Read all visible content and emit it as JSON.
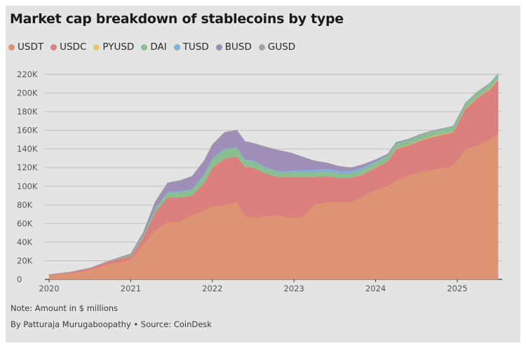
{
  "chart_data": {
    "type": "area",
    "stacked": true,
    "title": "Market cap breakdown of stablecoins by type",
    "x_tick_labels": [
      "2020",
      "2021",
      "2022",
      "2023",
      "2024",
      "2025"
    ],
    "y_tick_labels": [
      "0",
      "20K",
      "40K",
      "60K",
      "80K",
      "100K",
      "120K",
      "140K",
      "160K",
      "180K",
      "200K",
      "220K"
    ],
    "ylim": [
      0,
      220000
    ],
    "xlim": [
      2020.0,
      2025.55
    ],
    "grid": true,
    "legend_position": "top",
    "x": [
      2020.0,
      2020.25,
      2020.5,
      2020.75,
      2021.0,
      2021.15,
      2021.3,
      2021.45,
      2021.6,
      2021.75,
      2021.9,
      2022.0,
      2022.15,
      2022.3,
      2022.4,
      2022.5,
      2022.65,
      2022.8,
      2022.95,
      2023.1,
      2023.25,
      2023.4,
      2023.55,
      2023.7,
      2023.85,
      2024.0,
      2024.15,
      2024.25,
      2024.4,
      2024.55,
      2024.7,
      2024.85,
      2024.95,
      2025.1,
      2025.25,
      2025.4,
      2025.5
    ],
    "series": [
      {
        "name": "USDT",
        "color": "#dc9474",
        "values": [
          4600,
          6500,
          10000,
          17000,
          21000,
          37000,
          53000,
          62000,
          62000,
          69000,
          74000,
          78000,
          80000,
          83000,
          68000,
          66000,
          68000,
          69000,
          66000,
          67000,
          80000,
          83000,
          83000,
          83000,
          89000,
          96000,
          100000,
          106000,
          112000,
          115000,
          118000,
          120000,
          122000,
          140000,
          144000,
          150000,
          156000
        ]
      },
      {
        "name": "USDC",
        "color": "#dc7f7f",
        "values": [
          450,
          1000,
          2000,
          3000,
          4000,
          8000,
          19000,
          26000,
          26000,
          21000,
          30000,
          42000,
          50000,
          49000,
          53000,
          54000,
          46000,
          41000,
          44000,
          43000,
          30000,
          28000,
          26000,
          26000,
          24000,
          24000,
          27000,
          34000,
          32000,
          34000,
          35000,
          36000,
          36000,
          43000,
          51000,
          54000,
          58000
        ]
      },
      {
        "name": "PYUSD",
        "color": "#e3c66c",
        "values": [
          0,
          0,
          0,
          0,
          0,
          0,
          0,
          0,
          0,
          0,
          0,
          0,
          0,
          0,
          0,
          0,
          0,
          0,
          0,
          0,
          0,
          0,
          100,
          200,
          300,
          400,
          400,
          500,
          500,
          800,
          1000,
          700,
          700,
          600,
          700,
          900,
          1000
        ]
      },
      {
        "name": "DAI",
        "color": "#8bbf91",
        "values": [
          100,
          150,
          200,
          400,
          1500,
          2500,
          4000,
          5000,
          5500,
          6000,
          8000,
          9000,
          9500,
          9000,
          7000,
          7000,
          6000,
          5500,
          5500,
          5000,
          5000,
          5000,
          4500,
          4500,
          5000,
          5000,
          5500,
          5500,
          5000,
          5000,
          5000,
          5000,
          5000,
          5000,
          5000,
          5000,
          5000
        ]
      },
      {
        "name": "TUSD",
        "color": "#86aed2",
        "values": [
          0,
          0,
          0,
          0,
          0,
          300,
          1000,
          1400,
          1400,
          1400,
          1400,
          1400,
          1200,
          1000,
          1000,
          1100,
          1100,
          1100,
          1500,
          2500,
          3000,
          3000,
          3200,
          3000,
          2500,
          1500,
          800,
          500,
          500,
          500,
          500,
          500,
          500,
          500,
          500,
          500,
          500
        ]
      },
      {
        "name": "BUSD",
        "color": "#9e8eb8",
        "values": [
          0,
          0,
          0,
          0,
          1000,
          2000,
          6000,
          9000,
          11000,
          13000,
          14000,
          14000,
          17000,
          18000,
          19000,
          18000,
          21000,
          22000,
          19000,
          14000,
          9000,
          6000,
          4500,
          3000,
          2500,
          1500,
          800,
          500,
          300,
          200,
          100,
          100,
          100,
          100,
          100,
          100,
          100
        ]
      },
      {
        "name": "GUSD",
        "color": "#a2a2a2",
        "values": [
          0,
          0,
          0,
          0,
          0,
          100,
          300,
          300,
          300,
          300,
          300,
          300,
          300,
          300,
          300,
          300,
          300,
          300,
          300,
          300,
          300,
          300,
          300,
          300,
          300,
          300,
          300,
          300,
          300,
          300,
          300,
          300,
          300,
          300,
          300,
          300,
          300
        ]
      }
    ]
  },
  "notes": {
    "note": "Note: Amount in $ millions",
    "byline": "By Patturaja Murugaboopathy • Source: CoinDesk"
  }
}
